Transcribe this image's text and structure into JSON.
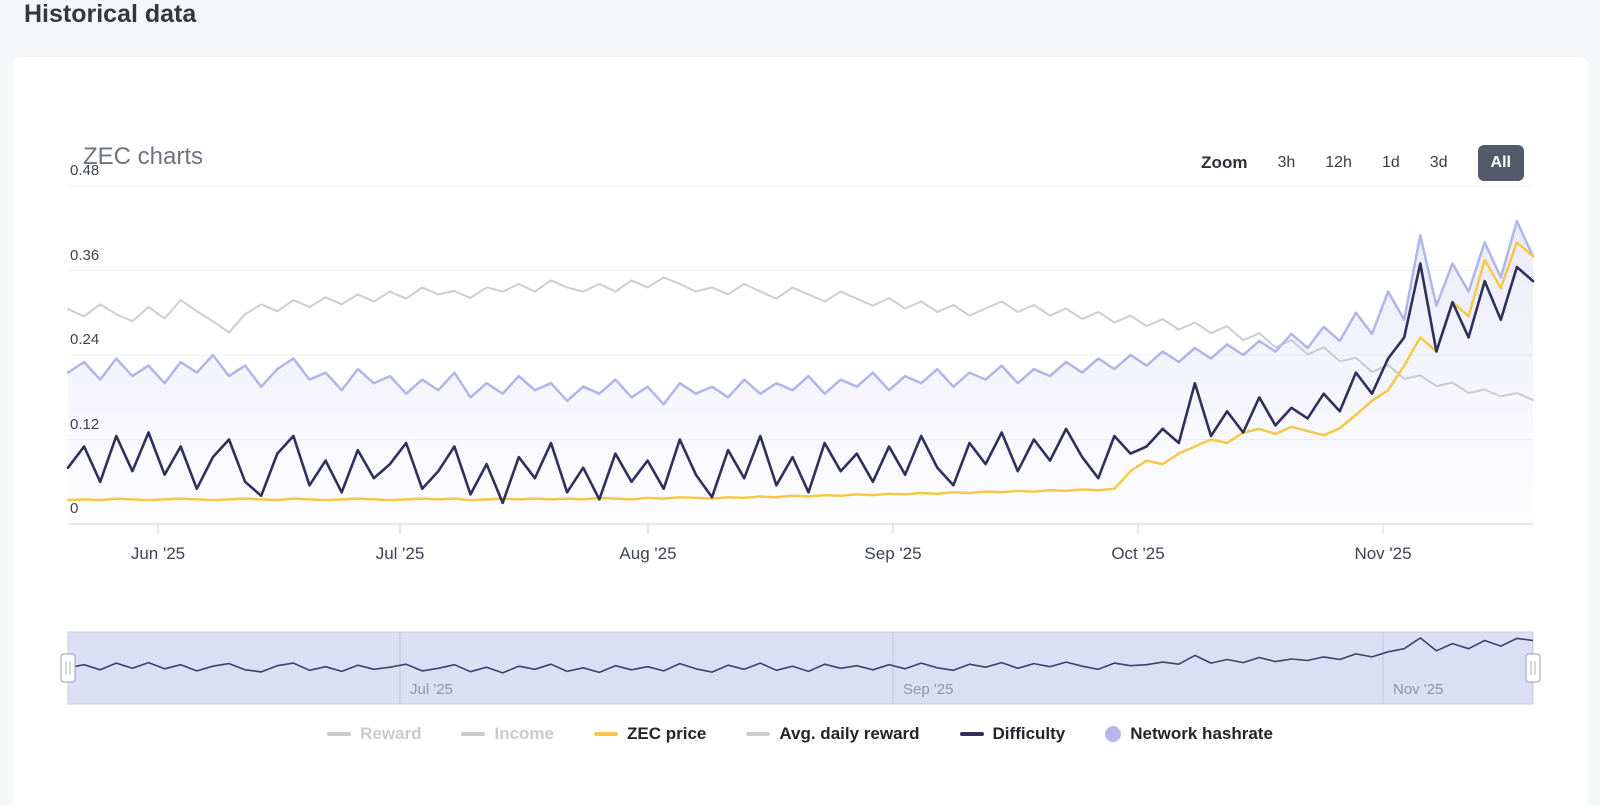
{
  "page": {
    "title": "Historical data"
  },
  "card": {
    "title": "ZEC charts",
    "zoom": {
      "label": "Zoom",
      "options": [
        {
          "label": "3h",
          "active": false
        },
        {
          "label": "12h",
          "active": false
        },
        {
          "label": "1d",
          "active": false
        },
        {
          "label": "3d",
          "active": false
        },
        {
          "label": "All",
          "active": true
        }
      ]
    }
  },
  "colors": {
    "zec_price": "#f5c84c",
    "avg_daily_reward": "#cdced2",
    "difficulty": "#312f5c",
    "network_hashrate": "#b1b5ea",
    "navigator_fill": "#dcdef4",
    "navigator_line": "#413f6e",
    "axis_line": "#ccd0e4",
    "gridline": "#f1f1f5",
    "disabled_legend": "#c9cbd1",
    "active_zoom_bg": "#535b6b"
  },
  "chart_data": {
    "type": "line",
    "title": "ZEC charts",
    "xlabel": "",
    "ylabel": "",
    "ylim": [
      0,
      0.48
    ],
    "yticks": [
      0,
      0.12,
      0.24,
      0.36,
      0.48
    ],
    "ytick_labels": [
      "0",
      "0.12",
      "0.24",
      "0.36",
      "0.48"
    ],
    "xticklabels": [
      "Jun '25",
      "Jul '25",
      "Aug '25",
      "Sep '25",
      "Oct '25",
      "Nov '25"
    ],
    "grid": "horizontal-faint",
    "legend_position": "bottom",
    "series": [
      {
        "name": "Avg. daily reward",
        "color": "#cdced2",
        "width": 2,
        "area": false,
        "values": [
          0.305,
          0.295,
          0.312,
          0.298,
          0.288,
          0.308,
          0.292,
          0.318,
          0.302,
          0.288,
          0.272,
          0.298,
          0.312,
          0.302,
          0.318,
          0.308,
          0.322,
          0.312,
          0.326,
          0.316,
          0.33,
          0.32,
          0.336,
          0.326,
          0.331,
          0.321,
          0.336,
          0.33,
          0.341,
          0.33,
          0.346,
          0.336,
          0.33,
          0.341,
          0.33,
          0.346,
          0.336,
          0.35,
          0.341,
          0.33,
          0.336,
          0.326,
          0.341,
          0.33,
          0.32,
          0.336,
          0.326,
          0.316,
          0.33,
          0.32,
          0.31,
          0.321,
          0.306,
          0.316,
          0.301,
          0.311,
          0.296,
          0.306,
          0.316,
          0.301,
          0.311,
          0.296,
          0.306,
          0.291,
          0.301,
          0.286,
          0.296,
          0.281,
          0.291,
          0.276,
          0.286,
          0.271,
          0.281,
          0.261,
          0.271,
          0.251,
          0.261,
          0.241,
          0.251,
          0.231,
          0.236,
          0.216,
          0.226,
          0.206,
          0.211,
          0.196,
          0.201,
          0.186,
          0.191,
          0.181,
          0.186,
          0.176
        ]
      },
      {
        "name": "Network hashrate",
        "color": "#b1b5ea",
        "width": 2.5,
        "area": true,
        "values": [
          0.215,
          0.23,
          0.205,
          0.235,
          0.21,
          0.225,
          0.2,
          0.23,
          0.215,
          0.24,
          0.21,
          0.225,
          0.195,
          0.22,
          0.235,
          0.205,
          0.215,
          0.19,
          0.22,
          0.2,
          0.21,
          0.185,
          0.205,
          0.19,
          0.215,
          0.18,
          0.2,
          0.185,
          0.21,
          0.19,
          0.2,
          0.175,
          0.195,
          0.185,
          0.205,
          0.18,
          0.195,
          0.17,
          0.2,
          0.185,
          0.195,
          0.18,
          0.205,
          0.185,
          0.2,
          0.19,
          0.21,
          0.185,
          0.205,
          0.195,
          0.215,
          0.19,
          0.21,
          0.2,
          0.22,
          0.195,
          0.215,
          0.205,
          0.225,
          0.2,
          0.22,
          0.21,
          0.23,
          0.215,
          0.235,
          0.22,
          0.24,
          0.225,
          0.245,
          0.23,
          0.25,
          0.235,
          0.255,
          0.24,
          0.26,
          0.245,
          0.27,
          0.25,
          0.28,
          0.26,
          0.3,
          0.27,
          0.33,
          0.29,
          0.41,
          0.31,
          0.37,
          0.33,
          0.4,
          0.35,
          0.43,
          0.38
        ]
      },
      {
        "name": "ZEC price",
        "color": "#f5c84c",
        "width": 2.5,
        "area": false,
        "values": [
          0.034,
          0.035,
          0.034,
          0.036,
          0.035,
          0.034,
          0.035,
          0.036,
          0.035,
          0.034,
          0.035,
          0.036,
          0.035,
          0.034,
          0.036,
          0.035,
          0.034,
          0.035,
          0.036,
          0.035,
          0.034,
          0.035,
          0.036,
          0.035,
          0.036,
          0.034,
          0.035,
          0.036,
          0.035,
          0.036,
          0.035,
          0.036,
          0.035,
          0.037,
          0.036,
          0.035,
          0.037,
          0.036,
          0.038,
          0.037,
          0.036,
          0.038,
          0.037,
          0.039,
          0.038,
          0.04,
          0.039,
          0.041,
          0.04,
          0.042,
          0.041,
          0.043,
          0.042,
          0.044,
          0.043,
          0.045,
          0.044,
          0.046,
          0.045,
          0.047,
          0.046,
          0.048,
          0.047,
          0.049,
          0.048,
          0.05,
          0.075,
          0.09,
          0.085,
          0.1,
          0.11,
          0.12,
          0.115,
          0.13,
          0.135,
          0.128,
          0.138,
          0.132,
          0.126,
          0.136,
          0.155,
          0.175,
          0.19,
          0.225,
          0.265,
          0.245,
          0.315,
          0.295,
          0.375,
          0.335,
          0.4,
          0.38
        ]
      },
      {
        "name": "Difficulty",
        "color": "#312f5c",
        "width": 2.6,
        "area": false,
        "values": [
          0.08,
          0.11,
          0.06,
          0.125,
          0.075,
          0.13,
          0.07,
          0.11,
          0.05,
          0.095,
          0.12,
          0.06,
          0.04,
          0.1,
          0.125,
          0.055,
          0.09,
          0.045,
          0.105,
          0.065,
          0.085,
          0.115,
          0.05,
          0.075,
          0.11,
          0.042,
          0.085,
          0.03,
          0.095,
          0.065,
          0.115,
          0.045,
          0.08,
          0.035,
          0.1,
          0.06,
          0.09,
          0.05,
          0.12,
          0.07,
          0.038,
          0.105,
          0.065,
          0.125,
          0.055,
          0.095,
          0.045,
          0.115,
          0.075,
          0.1,
          0.06,
          0.11,
          0.07,
          0.125,
          0.08,
          0.055,
          0.115,
          0.085,
          0.13,
          0.075,
          0.12,
          0.09,
          0.135,
          0.095,
          0.065,
          0.125,
          0.1,
          0.11,
          0.135,
          0.115,
          0.2,
          0.125,
          0.16,
          0.13,
          0.18,
          0.14,
          0.165,
          0.15,
          0.185,
          0.16,
          0.215,
          0.185,
          0.235,
          0.265,
          0.37,
          0.245,
          0.315,
          0.265,
          0.345,
          0.29,
          0.365,
          0.345
        ]
      }
    ],
    "legend": [
      {
        "label": "Reward",
        "color": "#c9cbd1",
        "marker": "line",
        "enabled": false
      },
      {
        "label": "Income",
        "color": "#c9cbd1",
        "marker": "line",
        "enabled": false
      },
      {
        "label": "ZEC price",
        "color": "#f5c84c",
        "marker": "line",
        "enabled": true
      },
      {
        "label": "Avg. daily reward",
        "color": "#cdced2",
        "marker": "line",
        "enabled": true
      },
      {
        "label": "Difficulty",
        "color": "#312f5c",
        "marker": "line",
        "enabled": true
      },
      {
        "label": "Network hashrate",
        "color": "#b3b7ec",
        "marker": "circle",
        "enabled": true
      }
    ],
    "navigator": {
      "series": "Difficulty",
      "xticklabels": [
        "Jul '25",
        "Sep '25",
        "Nov '25"
      ]
    }
  }
}
